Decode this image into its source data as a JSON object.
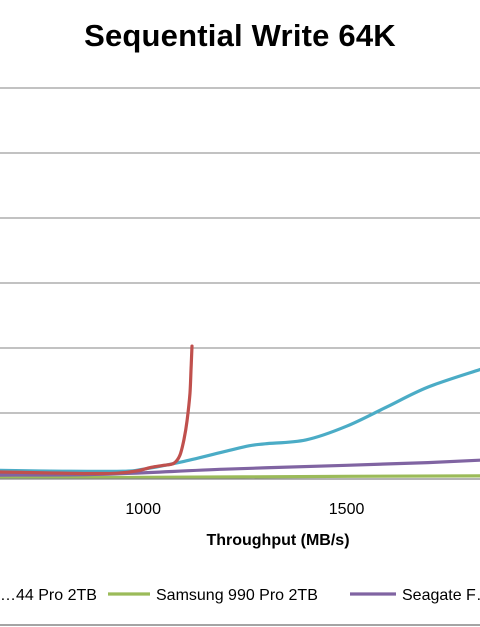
{
  "chart_data": {
    "type": "line",
    "title": "Sequential Write 64K",
    "xlabel": "Throughput (MB/s)",
    "ylabel": "",
    "x_ticks": [
      1000,
      1500
    ],
    "xlim": [
      648,
      1828
    ],
    "ylim": [
      0,
      1
    ],
    "grid": true,
    "legend_position": "bottom",
    "series": [
      {
        "name": "…44 Pro 2TB",
        "color": "#c0504d",
        "points": [
          [
            648,
            0.018
          ],
          [
            900,
            0.014
          ],
          [
            980,
            0.02
          ],
          [
            1020,
            0.03
          ],
          [
            1050,
            0.035
          ],
          [
            1075,
            0.04
          ],
          [
            1090,
            0.06
          ],
          [
            1100,
            0.1
          ],
          [
            1108,
            0.15
          ],
          [
            1115,
            0.22
          ],
          [
            1118,
            0.29
          ],
          [
            1120,
            0.34
          ]
        ]
      },
      {
        "name": "Samsung 990 Pro 2TB",
        "color": "#9bbb59",
        "points": [
          [
            648,
            0.005
          ],
          [
            1000,
            0.004
          ],
          [
            1500,
            0.007
          ],
          [
            1828,
            0.008
          ]
        ]
      },
      {
        "name": "Seagate F…",
        "color": "#8064a2",
        "points": [
          [
            648,
            0.01
          ],
          [
            900,
            0.012
          ],
          [
            1200,
            0.025
          ],
          [
            1500,
            0.035
          ],
          [
            1700,
            0.042
          ],
          [
            1828,
            0.048
          ]
        ]
      },
      {
        "name": "",
        "color": "#4bacc6",
        "points": [
          [
            648,
            0.022
          ],
          [
            800,
            0.02
          ],
          [
            950,
            0.02
          ],
          [
            1000,
            0.025
          ],
          [
            1100,
            0.045
          ],
          [
            1200,
            0.07
          ],
          [
            1260,
            0.085
          ],
          [
            1300,
            0.09
          ],
          [
            1400,
            0.1
          ],
          [
            1500,
            0.135
          ],
          [
            1600,
            0.185
          ],
          [
            1700,
            0.235
          ],
          [
            1828,
            0.28
          ]
        ]
      }
    ]
  }
}
